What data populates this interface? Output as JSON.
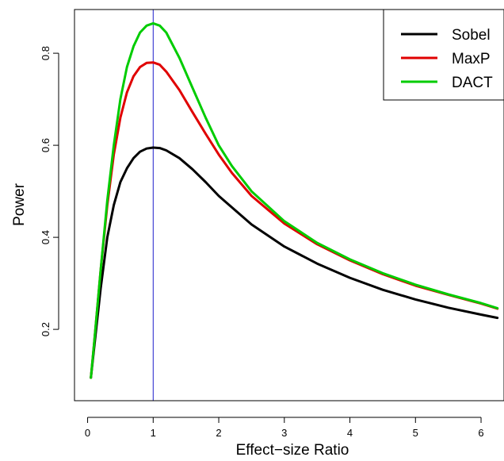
{
  "chart_data": {
    "type": "line",
    "xlabel": "Effect−size Ratio",
    "ylabel": "Power",
    "xlim": [
      -0.2,
      6.35
    ],
    "ylim": [
      0.045,
      0.895
    ],
    "x_ticks": [
      0,
      1,
      2,
      3,
      4,
      5,
      6
    ],
    "y_ticks": [
      0.2,
      0.4,
      0.6,
      0.8
    ],
    "x_tick_labels": [
      "0",
      "1",
      "2",
      "3",
      "4",
      "5",
      "6"
    ],
    "y_tick_labels": [
      "0.2",
      "0.4",
      "0.6",
      "0.8"
    ],
    "vline": {
      "x": 1,
      "color": "#1f1fcc"
    },
    "legend_position": "top-right",
    "series": [
      {
        "name": "Sobel",
        "color": "#000000",
        "x": [
          0.05,
          0.1,
          0.2,
          0.3,
          0.4,
          0.5,
          0.6,
          0.7,
          0.8,
          0.9,
          1.0,
          1.1,
          1.2,
          1.4,
          1.6,
          1.8,
          2.0,
          2.5,
          3.0,
          3.5,
          4.0,
          4.5,
          5.0,
          5.5,
          6.0,
          6.25
        ],
        "y": [
          0.095,
          0.16,
          0.29,
          0.4,
          0.47,
          0.52,
          0.55,
          0.572,
          0.586,
          0.593,
          0.595,
          0.594,
          0.589,
          0.572,
          0.548,
          0.52,
          0.49,
          0.428,
          0.38,
          0.343,
          0.312,
          0.286,
          0.265,
          0.247,
          0.232,
          0.225
        ]
      },
      {
        "name": "MaxP",
        "color": "#e00000",
        "x": [
          0.05,
          0.1,
          0.2,
          0.3,
          0.4,
          0.5,
          0.6,
          0.7,
          0.8,
          0.9,
          1.0,
          1.1,
          1.2,
          1.4,
          1.6,
          1.8,
          2.0,
          2.2,
          2.5,
          3.0,
          3.5,
          4.0,
          4.5,
          5.0,
          5.5,
          6.0,
          6.25
        ],
        "y": [
          0.095,
          0.17,
          0.33,
          0.47,
          0.58,
          0.66,
          0.715,
          0.75,
          0.77,
          0.779,
          0.78,
          0.775,
          0.76,
          0.72,
          0.672,
          0.625,
          0.58,
          0.54,
          0.49,
          0.43,
          0.385,
          0.35,
          0.32,
          0.295,
          0.275,
          0.256,
          0.245
        ]
      },
      {
        "name": "DACT",
        "color": "#00cc00",
        "x": [
          0.05,
          0.1,
          0.2,
          0.3,
          0.4,
          0.5,
          0.6,
          0.7,
          0.8,
          0.9,
          1.0,
          1.1,
          1.2,
          1.4,
          1.6,
          1.8,
          2.0,
          2.2,
          2.5,
          3.0,
          3.5,
          4.0,
          4.5,
          5.0,
          5.5,
          6.0,
          6.25
        ],
        "y": [
          0.095,
          0.17,
          0.33,
          0.48,
          0.6,
          0.7,
          0.77,
          0.815,
          0.845,
          0.86,
          0.865,
          0.86,
          0.845,
          0.79,
          0.725,
          0.66,
          0.6,
          0.555,
          0.5,
          0.435,
          0.388,
          0.352,
          0.322,
          0.297,
          0.276,
          0.257,
          0.246
        ]
      }
    ]
  }
}
